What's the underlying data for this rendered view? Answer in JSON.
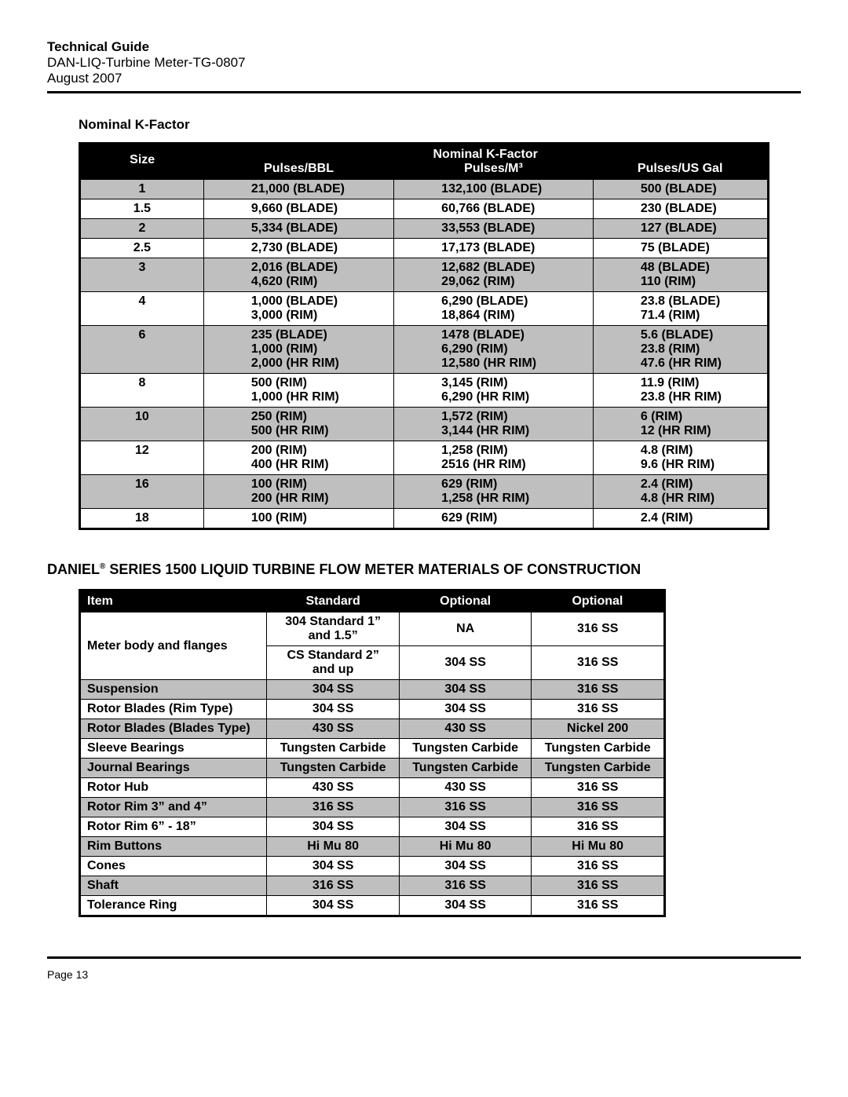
{
  "header": {
    "title": "Technical Guide",
    "doc": "DAN-LIQ-Turbine Meter-TG-0807",
    "date": "August 2007"
  },
  "kfactor": {
    "section_label": "Nominal K-Factor",
    "super_header": "Nominal K-Factor",
    "columns": [
      "Size",
      "Pulses/BBL",
      "Pulses/M³",
      "Pulses/US Gal"
    ],
    "rows": [
      {
        "shade": true,
        "size": "1",
        "bbl": [
          "21,000 (BLADE)"
        ],
        "m3": [
          "132,100 (BLADE)"
        ],
        "gal": [
          "500 (BLADE)"
        ]
      },
      {
        "shade": false,
        "size": "1.5",
        "bbl": [
          "9,660 (BLADE)"
        ],
        "m3": [
          "60,766 (BLADE)"
        ],
        "gal": [
          "230 (BLADE)"
        ]
      },
      {
        "shade": true,
        "size": "2",
        "bbl": [
          "5,334 (BLADE)"
        ],
        "m3": [
          "33,553 (BLADE)"
        ],
        "gal": [
          "127 (BLADE)"
        ]
      },
      {
        "shade": false,
        "size": "2.5",
        "bbl": [
          "2,730 (BLADE)"
        ],
        "m3": [
          "17,173 (BLADE)"
        ],
        "gal": [
          "75 (BLADE)"
        ]
      },
      {
        "shade": true,
        "size": "3",
        "bbl": [
          "2,016 (BLADE)",
          "4,620 (RIM)"
        ],
        "m3": [
          "12,682 (BLADE)",
          "29,062 (RIM)"
        ],
        "gal": [
          "48 (BLADE)",
          "110 (RIM)"
        ]
      },
      {
        "shade": false,
        "size": "4",
        "bbl": [
          "1,000 (BLADE)",
          "3,000 (RIM)"
        ],
        "m3": [
          "6,290 (BLADE)",
          "18,864 (RIM)"
        ],
        "gal": [
          "23.8 (BLADE)",
          "71.4 (RIM)"
        ]
      },
      {
        "shade": true,
        "size": "6",
        "bbl": [
          "235 (BLADE)",
          "1,000 (RIM)",
          "2,000 (HR RIM)"
        ],
        "m3": [
          "1478 (BLADE)",
          "6,290 (RIM)",
          "12,580 (HR RIM)"
        ],
        "gal": [
          "5.6 (BLADE)",
          "23.8 (RIM)",
          "47.6 (HR RIM)"
        ]
      },
      {
        "shade": false,
        "size": "8",
        "bbl": [
          "500 (RIM)",
          "1,000 (HR RIM)"
        ],
        "m3": [
          "3,145 (RIM)",
          "6,290 (HR RIM)"
        ],
        "gal": [
          "11.9 (RIM)",
          "23.8 (HR RIM)"
        ]
      },
      {
        "shade": true,
        "size": "10",
        "bbl": [
          "250 (RIM)",
          "500 (HR RIM)"
        ],
        "m3": [
          "1,572 (RIM)",
          "3,144 (HR RIM)"
        ],
        "gal": [
          "6 (RIM)",
          "12 (HR RIM)"
        ]
      },
      {
        "shade": false,
        "size": "12",
        "bbl": [
          "200 (RIM)",
          "400 (HR RIM)"
        ],
        "m3": [
          "1,258 (RIM)",
          "2516 (HR RIM)"
        ],
        "gal": [
          "4.8 (RIM)",
          "9.6 (HR RIM)"
        ]
      },
      {
        "shade": true,
        "size": "16",
        "bbl": [
          "100 (RIM)",
          "200 (HR RIM)"
        ],
        "m3": [
          "629 (RIM)",
          "1,258 (HR RIM)"
        ],
        "gal": [
          "2.4 (RIM)",
          "4.8 (HR RIM)"
        ]
      },
      {
        "shade": false,
        "size": "18",
        "bbl": [
          "100 (RIM)"
        ],
        "m3": [
          "629 (RIM)"
        ],
        "gal": [
          "2.4 (RIM)"
        ]
      }
    ]
  },
  "materials": {
    "title_prefix": "DANIEL",
    "title_suffix": " SERIES 1500 LIQUID TURBINE FLOW METER MATERIALS OF CONSTRUCTION",
    "columns": [
      "Item",
      "Standard",
      "Optional",
      "Optional"
    ],
    "body_row1": {
      "item": "Meter body and flanges",
      "std": [
        "304 Standard 1”",
        "and 1.5”"
      ],
      "opt1": "NA",
      "opt2": "316 SS"
    },
    "body_row2": {
      "std": [
        "CS Standard 2”",
        "and up"
      ],
      "opt1": "304 SS",
      "opt2": "316 SS"
    },
    "rows": [
      {
        "shade": true,
        "item": "Suspension",
        "std": "304 SS",
        "opt1": "304 SS",
        "opt2": "316 SS"
      },
      {
        "shade": false,
        "item": "Rotor Blades (Rim Type)",
        "std": "304 SS",
        "opt1": "304 SS",
        "opt2": "316 SS"
      },
      {
        "shade": true,
        "item": "Rotor Blades (Blades Type)",
        "std": "430 SS",
        "opt1": "430 SS",
        "opt2": "Nickel 200"
      },
      {
        "shade": false,
        "item": "Sleeve Bearings",
        "std": "Tungsten Carbide",
        "opt1": "Tungsten Carbide",
        "opt2": "Tungsten Carbide"
      },
      {
        "shade": true,
        "item": "Journal Bearings",
        "std": "Tungsten Carbide",
        "opt1": "Tungsten Carbide",
        "opt2": "Tungsten Carbide"
      },
      {
        "shade": false,
        "item": "Rotor Hub",
        "std": "430 SS",
        "opt1": "430 SS",
        "opt2": "316 SS"
      },
      {
        "shade": true,
        "item": "Rotor Rim 3” and 4”",
        "std": "316 SS",
        "opt1": "316 SS",
        "opt2": "316 SS"
      },
      {
        "shade": false,
        "item": "Rotor Rim 6” - 18”",
        "std": "304 SS",
        "opt1": "304 SS",
        "opt2": "316 SS"
      },
      {
        "shade": true,
        "item": "Rim Buttons",
        "std": "Hi Mu 80",
        "opt1": "Hi Mu 80",
        "opt2": "Hi Mu 80"
      },
      {
        "shade": false,
        "item": "Cones",
        "std": "304 SS",
        "opt1": "304 SS",
        "opt2": "316 SS"
      },
      {
        "shade": true,
        "item": "Shaft",
        "std": "316 SS",
        "opt1": "316 SS",
        "opt2": "316 SS"
      },
      {
        "shade": false,
        "item": "Tolerance Ring",
        "std": "304 SS",
        "opt1": "304 SS",
        "opt2": "316 SS"
      }
    ]
  },
  "footer": {
    "page": "Page 13"
  },
  "style": {
    "shade_color": "#bfbfbf",
    "header_bg": "#000000",
    "header_fg": "#ffffff",
    "border_color": "#000000",
    "font_family": "Arial"
  }
}
